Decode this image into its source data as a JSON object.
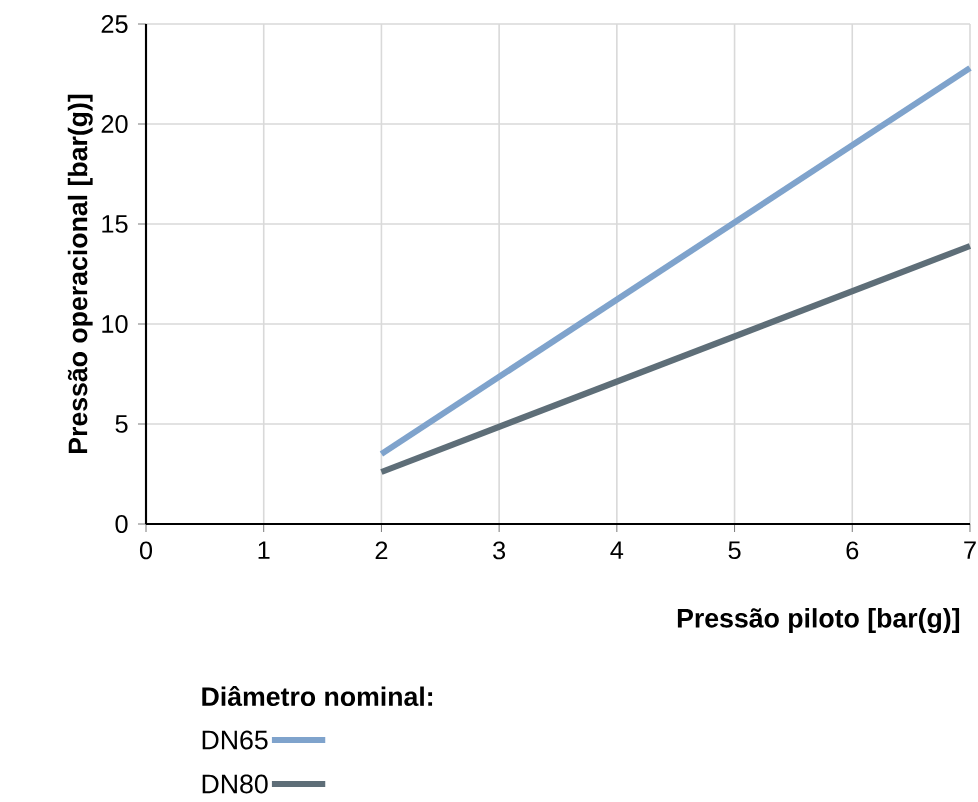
{
  "chart_data": {
    "type": "line",
    "xlabel": "Pressão piloto [bar(g)]",
    "ylabel": "Pressão operacional [bar(g)]",
    "legend_title": "Diâmetro nominal:",
    "legend": "bottom",
    "grid": true,
    "xlim": [
      0,
      7
    ],
    "ylim": [
      0,
      25
    ],
    "xticks": [
      0,
      1,
      2,
      3,
      4,
      5,
      6,
      7
    ],
    "yticks": [
      0,
      5,
      10,
      15,
      20,
      25
    ],
    "x": [
      2,
      7
    ],
    "series": [
      {
        "name": "DN65",
        "color": "#7fa3cc",
        "values": [
          3.5,
          22.8
        ]
      },
      {
        "name": "DN80",
        "color": "#5e6e78",
        "values": [
          2.6,
          13.9
        ]
      }
    ]
  }
}
